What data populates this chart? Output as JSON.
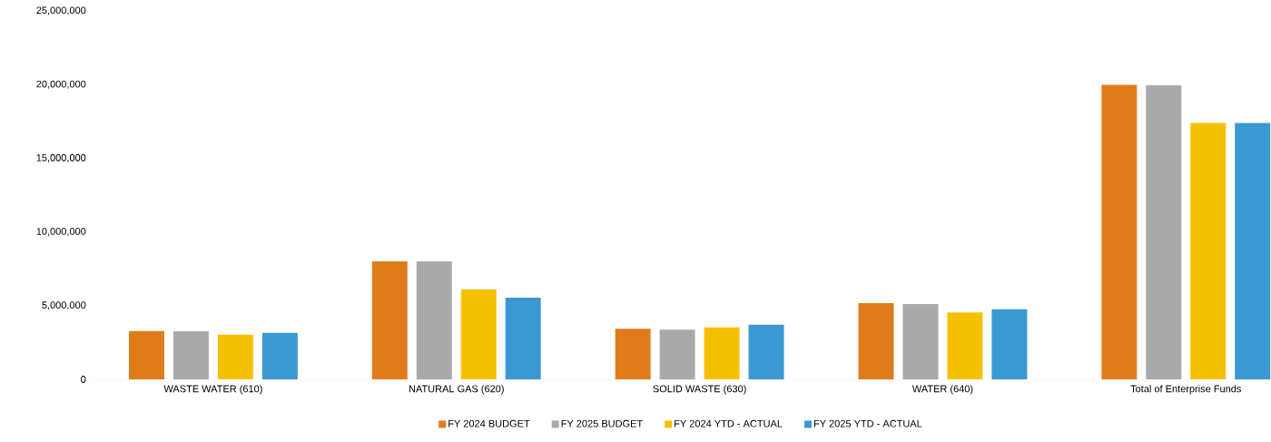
{
  "chart_data": {
    "type": "bar",
    "categories": [
      "WASTE WATER (610)",
      "NATURAL GAS (620)",
      "SOLID WASTE (630)",
      "WATER (640)",
      "Total of Enterprise Funds"
    ],
    "series": [
      {
        "name": "FY 2024 BUDGET",
        "color": "#e07b1c",
        "values": [
          3280000,
          8000000,
          3430000,
          5170000,
          19980000
        ]
      },
      {
        "name": "FY 2025 BUDGET",
        "color": "#a9a9a9",
        "values": [
          3260000,
          8000000,
          3370000,
          5110000,
          19950000
        ]
      },
      {
        "name": "FY 2024 YTD - ACTUAL",
        "color": "#f5c000",
        "values": [
          3030000,
          6110000,
          3530000,
          4540000,
          17400000
        ]
      },
      {
        "name": "FY 2025 YTD - ACTUAL",
        "color": "#3a98d3",
        "values": [
          3160000,
          5540000,
          3710000,
          4760000,
          17400000
        ]
      }
    ],
    "ylim": [
      0,
      25000000
    ],
    "yticks": [
      {
        "value": 0,
        "label": "0"
      },
      {
        "value": 5000000,
        "label": "5,000,000"
      },
      {
        "value": 10000000,
        "label": "10,000,000"
      },
      {
        "value": 15000000,
        "label": "15,000,000"
      },
      {
        "value": 20000000,
        "label": "20,000,000"
      },
      {
        "value": 25000000,
        "label": "25,000,000"
      }
    ],
    "legend": "bottom"
  }
}
